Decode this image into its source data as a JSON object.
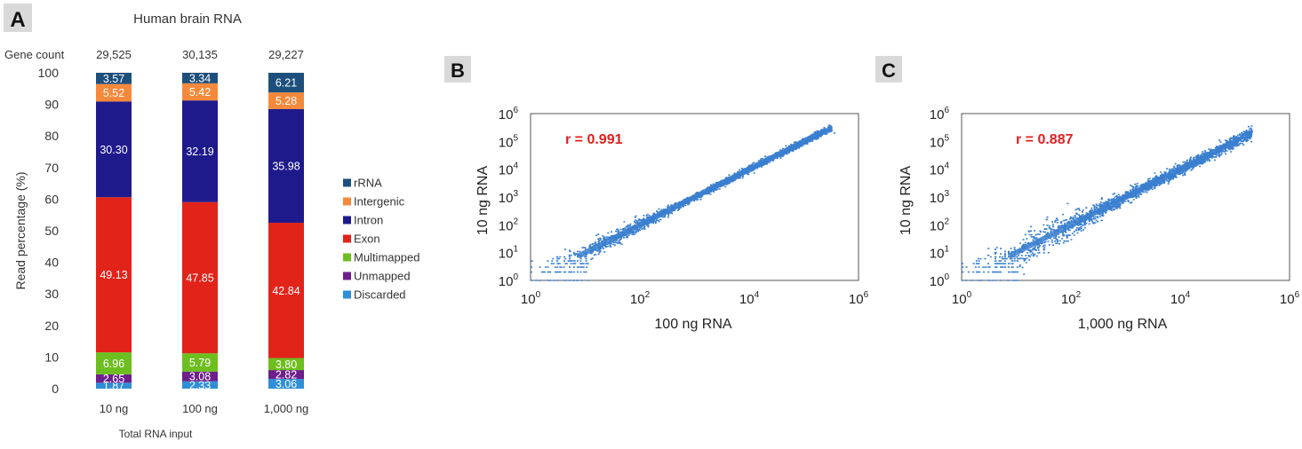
{
  "panel_letters": [
    "A",
    "B",
    "C"
  ],
  "chart_data": [
    {
      "panel": "A",
      "type": "bar",
      "stacked": true,
      "title": "Human brain RNA",
      "xlabel": "Total RNA input",
      "ylabel": "Read percentage (%)",
      "ylim": [
        0,
        100
      ],
      "yticks": [
        0,
        10,
        20,
        30,
        40,
        50,
        60,
        70,
        80,
        90,
        100
      ],
      "categories": [
        "10 ng",
        "100 ng",
        "1,000 ng"
      ],
      "gene_count_label": "Gene count",
      "gene_counts": [
        "29,525",
        "30,135",
        "29,227"
      ],
      "legend_position": "right",
      "series": [
        {
          "name": "Discarded",
          "color": "#2e8fd8",
          "values": [
            1.87,
            2.33,
            3.06
          ]
        },
        {
          "name": "Unmapped",
          "color": "#6d1f8c",
          "values": [
            2.65,
            3.08,
            2.82
          ]
        },
        {
          "name": "Multimapped",
          "color": "#6dbe1f",
          "values": [
            6.96,
            5.79,
            3.8
          ]
        },
        {
          "name": "Exon",
          "color": "#e2231a",
          "values": [
            49.13,
            47.85,
            42.84
          ]
        },
        {
          "name": "Intron",
          "color": "#1f1a8c",
          "values": [
            30.3,
            32.19,
            35.98
          ]
        },
        {
          "name": "Intergenic",
          "color": "#f5893b",
          "values": [
            5.52,
            5.42,
            5.28
          ]
        },
        {
          "name": "rRNA",
          "color": "#1d4f7c",
          "values": [
            3.57,
            3.34,
            6.21
          ]
        }
      ],
      "legend_order": [
        "rRNA",
        "Intergenic",
        "Intron",
        "Exon",
        "Multimapped",
        "Unmapped",
        "Discarded"
      ]
    },
    {
      "panel": "B",
      "type": "scatter",
      "xlabel": "100 ng RNA",
      "ylabel": "10 ng RNA",
      "x_scale": "log",
      "y_scale": "log",
      "xlim": [
        1,
        1000000
      ],
      "ylim": [
        1,
        1000000
      ],
      "x_ticks": [
        "10",
        "10",
        "10",
        "10"
      ],
      "x_tick_exponents": [
        "0",
        "2",
        "4",
        "6"
      ],
      "y_ticks": [
        "10",
        "10",
        "10",
        "10",
        "10",
        "10",
        "10"
      ],
      "y_tick_exponents": [
        "0",
        "1",
        "2",
        "3",
        "4",
        "5",
        "6"
      ],
      "annotation": "r = 0.991",
      "correlation": 0.991,
      "color": "#3a7fcf",
      "max_point": [
        350000,
        200000
      ]
    },
    {
      "panel": "C",
      "type": "scatter",
      "xlabel": "1,000 ng RNA",
      "ylabel": "10 ng RNA",
      "x_scale": "log",
      "y_scale": "log",
      "xlim": [
        1,
        1000000
      ],
      "ylim": [
        1,
        1000000
      ],
      "x_ticks": [
        "10",
        "10",
        "10",
        "10"
      ],
      "x_tick_exponents": [
        "0",
        "2",
        "4",
        "6"
      ],
      "y_ticks": [
        "10",
        "10",
        "10",
        "10",
        "10",
        "10",
        "10"
      ],
      "y_tick_exponents": [
        "0",
        "1",
        "2",
        "3",
        "4",
        "5",
        "6"
      ],
      "annotation": "r = 0.887",
      "correlation": 0.887,
      "color": "#3a7fcf",
      "max_point": [
        200000,
        220000
      ]
    }
  ]
}
